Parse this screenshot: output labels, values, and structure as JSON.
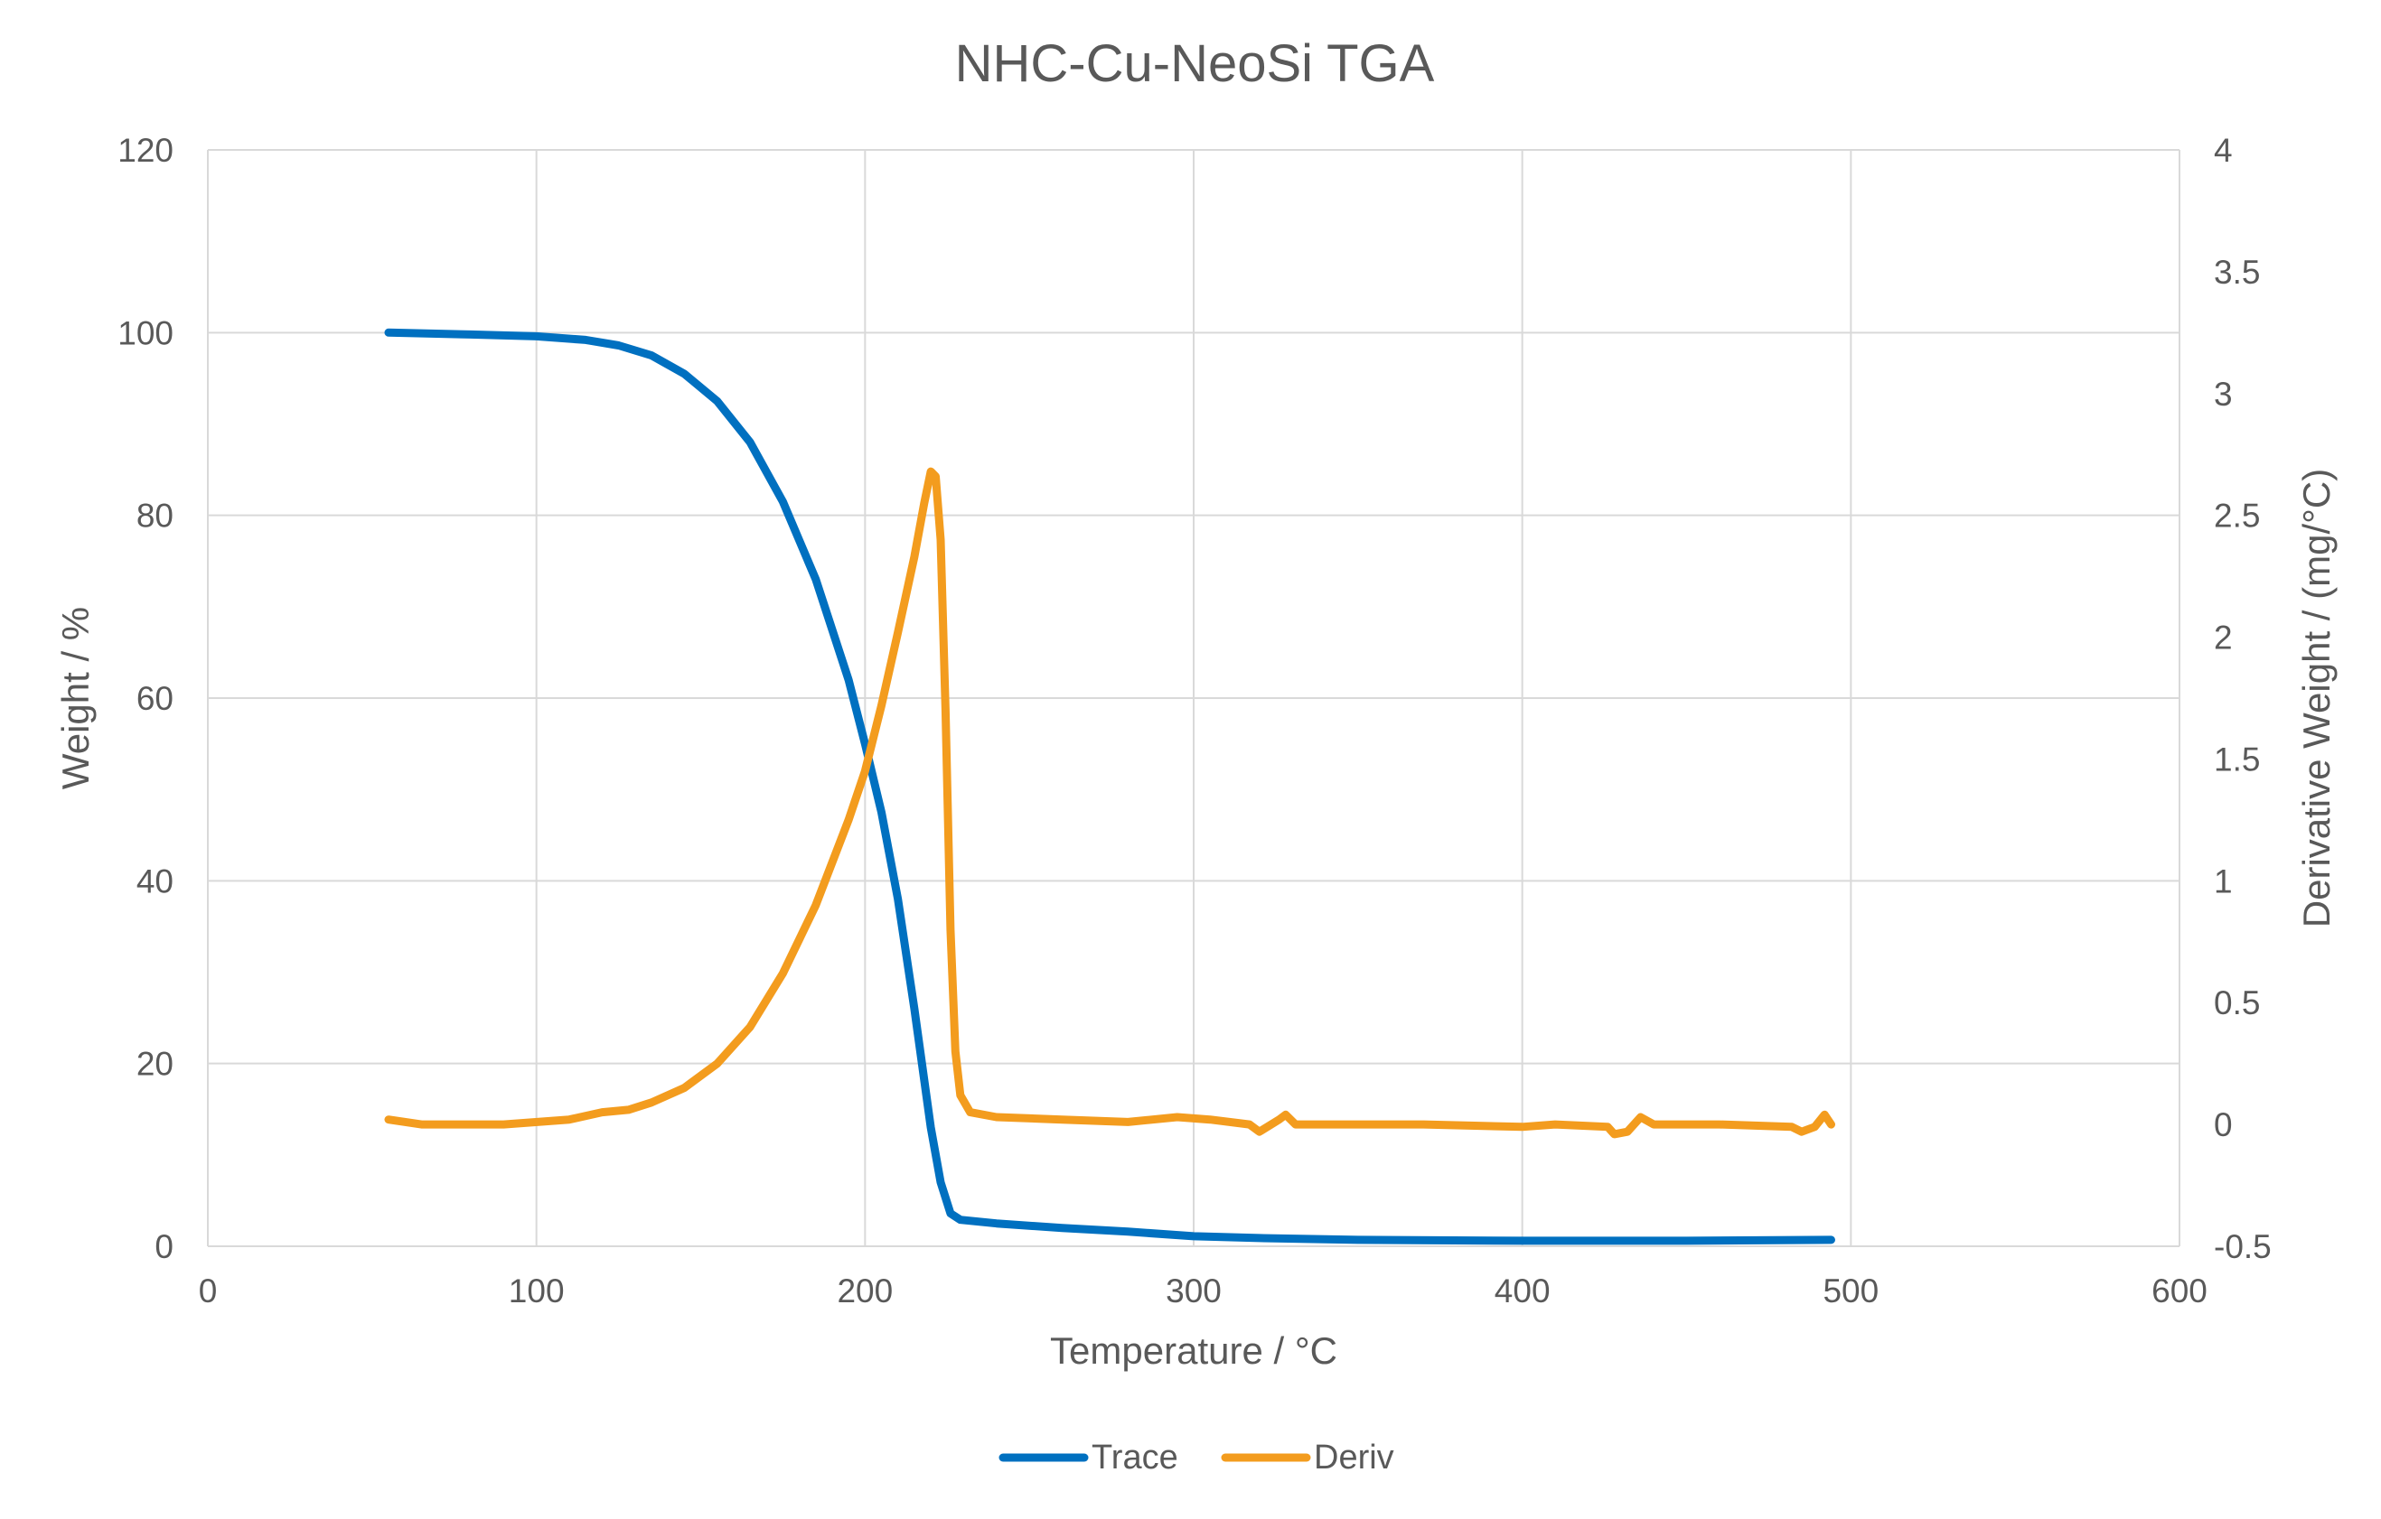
{
  "chart_data": {
    "type": "line",
    "title": "NHC-Cu-NeoSi TGA",
    "xlabel": "Temperature / °C",
    "ylabel": "Weight / %",
    "y2label": "Derivative Weight / (mg/°C)",
    "xlim": [
      0,
      600
    ],
    "ylim": [
      0,
      120
    ],
    "y2lim": [
      -0.5,
      4
    ],
    "xticks": [
      0,
      100,
      200,
      300,
      400,
      500,
      600
    ],
    "yticks": [
      0,
      20,
      40,
      60,
      80,
      100,
      120
    ],
    "y2ticks": [
      -0.5,
      0,
      0.5,
      1,
      1.5,
      2,
      2.5,
      3,
      3.5,
      4
    ],
    "grid": true,
    "legend_position": "bottom",
    "series": [
      {
        "name": "Trace",
        "axis": "left",
        "color": "#0070C0",
        "points": [
          [
            55,
            100
          ],
          [
            80,
            99.8
          ],
          [
            100,
            99.6
          ],
          [
            115,
            99.2
          ],
          [
            125,
            98.6
          ],
          [
            135,
            97.5
          ],
          [
            145,
            95.5
          ],
          [
            155,
            92.5
          ],
          [
            165,
            88
          ],
          [
            175,
            81.5
          ],
          [
            185,
            73
          ],
          [
            195,
            62
          ],
          [
            200,
            55
          ],
          [
            205,
            47.5
          ],
          [
            210,
            38
          ],
          [
            215,
            26
          ],
          [
            220,
            13
          ],
          [
            223,
            7
          ],
          [
            226,
            3.6
          ],
          [
            229,
            2.9
          ],
          [
            240,
            2.5
          ],
          [
            260,
            2
          ],
          [
            280,
            1.6
          ],
          [
            300,
            1.1
          ],
          [
            320,
            0.9
          ],
          [
            350,
            0.7
          ],
          [
            400,
            0.6
          ],
          [
            450,
            0.6
          ],
          [
            494,
            0.7
          ]
        ]
      },
      {
        "name": "Deriv",
        "axis": "right",
        "color": "#F39C1E",
        "points": [
          [
            55,
            0.02
          ],
          [
            65,
            0.0
          ],
          [
            90,
            0.0
          ],
          [
            110,
            0.02
          ],
          [
            120,
            0.05
          ],
          [
            128,
            0.06
          ],
          [
            135,
            0.09
          ],
          [
            145,
            0.15
          ],
          [
            155,
            0.25
          ],
          [
            165,
            0.4
          ],
          [
            175,
            0.62
          ],
          [
            185,
            0.9
          ],
          [
            195,
            1.25
          ],
          [
            200,
            1.45
          ],
          [
            205,
            1.72
          ],
          [
            210,
            2.02
          ],
          [
            215,
            2.33
          ],
          [
            218,
            2.55
          ],
          [
            220,
            2.68
          ],
          [
            221.5,
            2.66
          ],
          [
            223,
            2.4
          ],
          [
            224.5,
            1.7
          ],
          [
            226,
            0.8
          ],
          [
            227.5,
            0.3
          ],
          [
            229,
            0.12
          ],
          [
            232,
            0.05
          ],
          [
            240,
            0.03
          ],
          [
            260,
            0.02
          ],
          [
            280,
            0.01
          ],
          [
            295,
            0.03
          ],
          [
            305,
            0.02
          ],
          [
            317,
            0.0
          ],
          [
            320,
            -0.03
          ],
          [
            326,
            0.02
          ],
          [
            328,
            0.04
          ],
          [
            331,
            0.0
          ],
          [
            350,
            0.0
          ],
          [
            370,
            0.0
          ],
          [
            400,
            -0.01
          ],
          [
            410,
            0.0
          ],
          [
            426,
            -0.01
          ],
          [
            428,
            -0.04
          ],
          [
            432,
            -0.03
          ],
          [
            436,
            0.03
          ],
          [
            440,
            0.0
          ],
          [
            460,
            0.0
          ],
          [
            482,
            -0.01
          ],
          [
            485,
            -0.03
          ],
          [
            489,
            -0.01
          ],
          [
            492,
            0.04
          ],
          [
            494,
            0.0
          ]
        ]
      }
    ]
  }
}
